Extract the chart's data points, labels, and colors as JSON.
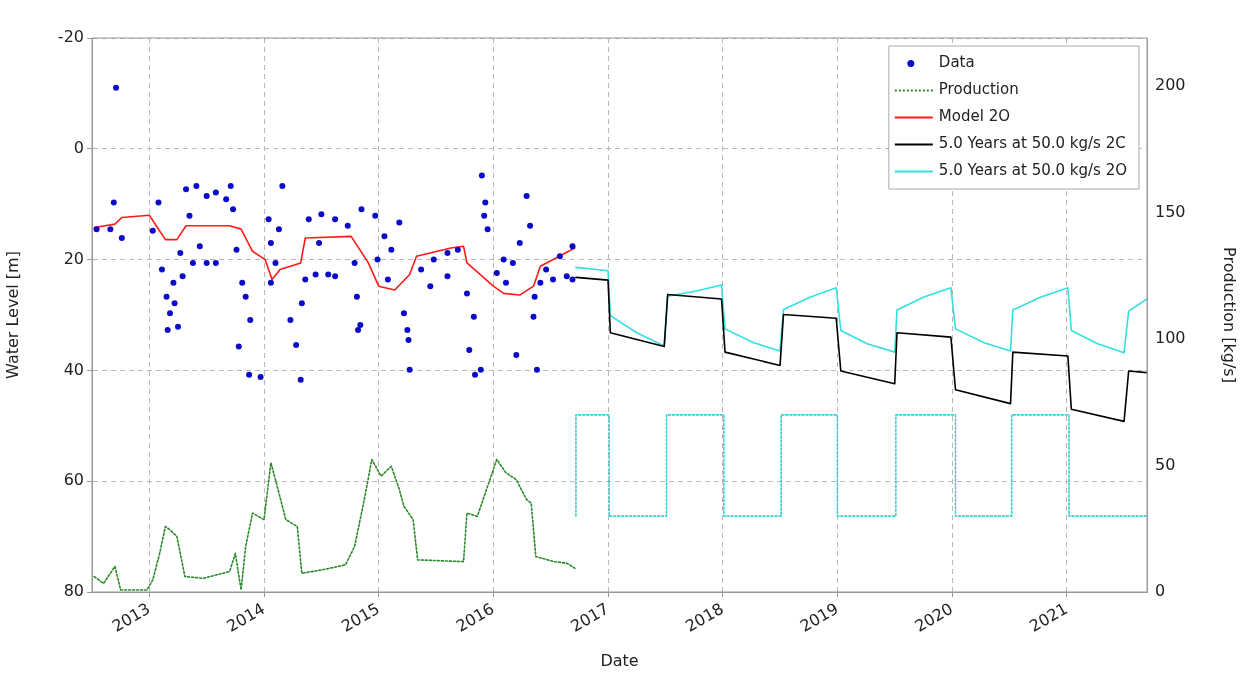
{
  "chart_data": {
    "type": "line",
    "xlabel": "Date",
    "ylabel": "Water Level [m]",
    "y2label": "Production [kg/s]",
    "xlim": [
      2012.5,
      2021.7
    ],
    "xticks": [
      2013,
      2014,
      2015,
      2016,
      2017,
      2018,
      2019,
      2020,
      2021
    ],
    "ylim": [
      80,
      -20
    ],
    "yticks": [
      -20,
      0,
      20,
      40,
      60,
      80
    ],
    "y2lim": [
      0,
      219
    ],
    "y2ticks": [
      0,
      50,
      100,
      150,
      200
    ],
    "grid": true,
    "legend": "top right",
    "series": [
      {
        "name": "Data",
        "type": "scatter",
        "marker": "circle",
        "axis": "y",
        "color": "#0a0ac8",
        "x": [
          2012.71,
          2012.54,
          2012.66,
          2012.69,
          2012.76,
          2013.08,
          2013.03,
          2013.11,
          2013.15,
          2013.18,
          2013.16,
          2013.22,
          2013.25,
          2013.21,
          2013.27,
          2013.32,
          2013.41,
          2013.5,
          2013.58,
          2013.67,
          2013.71,
          2013.35,
          2013.38,
          2013.5,
          2013.58,
          2013.44,
          2013.29,
          2013.73,
          2013.76,
          2013.81,
          2013.84,
          2013.88,
          2013.78,
          2013.87,
          2013.97,
          2014.16,
          2014.04,
          2014.13,
          2014.06,
          2014.1,
          2014.06,
          2014.23,
          2014.28,
          2014.32,
          2014.33,
          2014.36,
          2014.39,
          2014.5,
          2014.62,
          2014.73,
          2014.48,
          2014.56,
          2014.62,
          2014.45,
          2014.79,
          2014.81,
          2014.82,
          2014.84,
          2014.85,
          2014.97,
          2015.05,
          2015.11,
          2015.18,
          2014.99,
          2015.08,
          2015.22,
          2015.25,
          2015.26,
          2015.27,
          2015.37,
          2015.48,
          2015.6,
          2015.69,
          2015.45,
          2015.6,
          2015.77,
          2015.83,
          2015.9,
          2015.93,
          2015.95,
          2015.92,
          2015.79,
          2015.84,
          2015.89,
          2016.03,
          2016.11,
          2016.17,
          2016.23,
          2016.29,
          2016.32,
          2016.09,
          2016.2,
          2016.38,
          2016.35,
          2016.36,
          2016.41,
          2016.46,
          2016.58,
          2016.69,
          2016.52,
          2016.64,
          2016.69
        ],
        "values": [
          -11.0,
          14.5,
          14.5,
          9.7,
          16.1,
          9.7,
          14.8,
          21.8,
          26.7,
          29.7,
          32.7,
          27.9,
          32.1,
          24.2,
          18.8,
          7.3,
          6.7,
          8.5,
          7.9,
          9.1,
          6.7,
          12.1,
          20.6,
          20.6,
          20.6,
          17.6,
          23.0,
          10.9,
          18.2,
          24.2,
          26.7,
          30.9,
          35.7,
          40.8,
          41.2,
          6.7,
          12.7,
          14.5,
          17.0,
          20.6,
          24.2,
          30.9,
          35.4,
          41.7,
          27.9,
          23.6,
          12.7,
          11.8,
          12.7,
          13.9,
          17.0,
          22.7,
          23.0,
          22.7,
          20.6,
          26.7,
          32.7,
          31.8,
          10.9,
          12.1,
          15.8,
          18.2,
          13.3,
          20.0,
          23.6,
          29.7,
          32.7,
          34.5,
          39.9,
          21.8,
          20.0,
          18.8,
          18.2,
          24.8,
          23.0,
          26.1,
          30.3,
          4.8,
          9.7,
          14.5,
          12.1,
          36.3,
          40.8,
          39.9,
          22.4,
          24.2,
          20.6,
          17.0,
          8.5,
          13.9,
          20.0,
          37.2,
          39.9,
          30.3,
          26.7,
          24.2,
          21.8,
          19.4,
          17.6,
          23.6,
          23.0,
          23.6
        ]
      },
      {
        "name": "Production",
        "marker": "none",
        "line_style": "dotted",
        "axis": "y2",
        "color": "#2a8a2a",
        "x": [
          2012.52,
          2012.6,
          2012.7,
          2012.75,
          2012.98,
          2013.03,
          2013.09,
          2013.14,
          2013.18,
          2013.24,
          2013.31,
          2013.47,
          2013.7,
          2013.75,
          2013.8,
          2013.84,
          2013.9,
          2014.0,
          2014.06,
          2014.1,
          2014.19,
          2014.29,
          2014.33,
          2014.5,
          2014.71,
          2014.79,
          2014.88,
          2014.94,
          2015.02,
          2015.11,
          2015.18,
          2015.22,
          2015.3,
          2015.34,
          2015.74,
          2015.77,
          2015.86,
          2015.95,
          2016.03,
          2016.11,
          2016.2,
          2016.29,
          2016.33,
          2016.37,
          2016.53,
          2016.64,
          2016.71
        ],
        "values": [
          6.1,
          3.4,
          10.1,
          0.8,
          0.8,
          4.8,
          15.3,
          25.9,
          24.6,
          22.0,
          6.1,
          5.4,
          8.1,
          15.3,
          0.8,
          18.0,
          31.2,
          28.6,
          51.1,
          44.4,
          28.6,
          25.9,
          7.4,
          8.7,
          10.7,
          18.0,
          37.8,
          52.4,
          45.8,
          49.7,
          40.5,
          33.9,
          28.6,
          12.7,
          12.0,
          31.2,
          29.9,
          41.8,
          52.4,
          47.1,
          44.4,
          36.5,
          35.2,
          14.0,
          12.0,
          11.4,
          9.4
        ]
      },
      {
        "name": "Model 2O",
        "marker": "none",
        "line_style": "solid",
        "axis": "y",
        "color": "#ff1a1a",
        "x": [
          2012.52,
          2012.7,
          2012.76,
          2013.0,
          2013.06,
          2013.14,
          2013.24,
          2013.32,
          2013.7,
          2013.8,
          2013.9,
          2014.01,
          2014.07,
          2014.14,
          2014.32,
          2014.36,
          2014.76,
          2014.91,
          2015.0,
          2015.14,
          2015.27,
          2015.33,
          2015.63,
          2015.74,
          2015.77,
          2016.0,
          2016.09,
          2016.23,
          2016.35,
          2016.41,
          2016.71
        ],
        "values": [
          14.2,
          13.6,
          12.4,
          12.0,
          13.9,
          16.4,
          16.4,
          13.9,
          13.9,
          14.5,
          18.5,
          20.0,
          23.6,
          21.8,
          20.6,
          16.1,
          15.8,
          20.6,
          24.8,
          25.5,
          22.7,
          19.4,
          17.9,
          17.6,
          20.6,
          24.8,
          26.1,
          26.4,
          24.8,
          21.2,
          17.9
        ]
      },
      {
        "name": "5.0 Years at 50.0 kg/s 2C",
        "marker": "none",
        "line_style": "solid",
        "axis": "y",
        "color": "#000000",
        "x": [
          2016.72,
          2017.0,
          2017.02,
          2017.49,
          2017.52,
          2017.99,
          2018.02,
          2018.5,
          2018.53,
          2018.99,
          2019.03,
          2019.5,
          2019.52,
          2019.99,
          2020.03,
          2020.51,
          2020.53,
          2021.01,
          2021.04,
          2021.5,
          2021.54,
          2021.7
        ],
        "values": [
          23.2,
          23.7,
          33.2,
          35.7,
          26.3,
          27.1,
          36.7,
          39.1,
          29.9,
          30.6,
          40.1,
          42.4,
          33.2,
          34.0,
          43.5,
          46.0,
          36.7,
          37.4,
          47.0,
          49.2,
          40.1,
          40.4
        ]
      },
      {
        "name": "5.0 Years at 50.0 kg/s 2O",
        "marker": "none",
        "line_style": "solid",
        "axis": "y",
        "color": "#33e0e0",
        "x": [
          2016.72,
          2017.0,
          2017.02,
          2017.25,
          2017.49,
          2017.52,
          2017.76,
          2017.99,
          2018.02,
          2018.27,
          2018.5,
          2018.53,
          2018.76,
          2018.99,
          2019.03,
          2019.26,
          2019.5,
          2019.52,
          2019.75,
          2019.99,
          2020.03,
          2020.28,
          2020.51,
          2020.53,
          2020.77,
          2021.01,
          2021.04,
          2021.27,
          2021.5,
          2021.54,
          2021.7
        ],
        "values": [
          21.4,
          22.0,
          30.1,
          33.2,
          35.6,
          26.6,
          25.7,
          24.6,
          32.5,
          35.0,
          36.5,
          29.0,
          26.8,
          25.1,
          32.8,
          35.2,
          36.7,
          29.1,
          26.8,
          25.1,
          32.5,
          35.0,
          36.5,
          29.1,
          26.8,
          25.1,
          32.8,
          35.2,
          36.8,
          29.3,
          27.1
        ]
      },
      {
        "type": "step",
        "marker": "none",
        "line_style": "dotted",
        "axis": "y2",
        "color": "#33d0d0",
        "x": [
          2016.72,
          2017.01,
          2017.51,
          2018.01,
          2018.51,
          2019.0,
          2019.51,
          2020.03,
          2020.52,
          2021.02,
          2021.52,
          2021.7
        ],
        "values": [
          30,
          70,
          30,
          70,
          30,
          70,
          30,
          70,
          30,
          70,
          30,
          30
        ]
      }
    ]
  }
}
